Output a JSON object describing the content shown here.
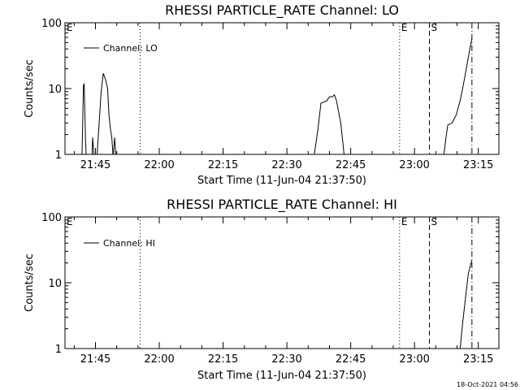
{
  "chart_data": [
    {
      "type": "line",
      "title": "RHESSI PARTICLE_RATE Channel: LO",
      "xlabel": "Start Time (11-Jun-04 21:37:50)",
      "ylabel": "Counts/sec",
      "yscale": "log",
      "ylim": [
        1,
        100
      ],
      "x_range": [
        "21:37:50",
        "23:19:50"
      ],
      "x_ticks": [
        "21:45",
        "22:00",
        "22:15",
        "22:30",
        "22:45",
        "23:00",
        "23:15"
      ],
      "y_ticks": [
        "1",
        "10",
        "100"
      ],
      "legend": {
        "position": "top-left",
        "entries": [
          "Channel: LO"
        ]
      },
      "markers": [
        {
          "label": "E",
          "time": "21:37:50",
          "style": "dotted"
        },
        {
          "label": "",
          "time": "21:55:30",
          "style": "dotted"
        },
        {
          "label": "E",
          "time": "22:56:30",
          "style": "dotted"
        },
        {
          "label": "S",
          "time": "23:03:30",
          "style": "dashed"
        },
        {
          "label": "",
          "time": "23:13:30",
          "style": "dashdot"
        }
      ],
      "series": [
        {
          "name": "Channel: LO",
          "points": [
            [
              "21:41:50",
              0.9
            ],
            [
              "21:42:10",
              11.0
            ],
            [
              "21:42:20",
              12.0
            ],
            [
              "21:42:40",
              1.6
            ],
            [
              "21:42:50",
              0.9
            ],
            [
              "21:44:10",
              0.9
            ],
            [
              "21:44:20",
              1.8
            ],
            [
              "21:44:40",
              0.9
            ],
            [
              "21:45:20",
              0.9
            ],
            [
              "21:46:20",
              9.0
            ],
            [
              "21:46:50",
              17.0
            ],
            [
              "21:47:20",
              14.0
            ],
            [
              "21:47:50",
              10.0
            ],
            [
              "21:48:10",
              4.0
            ],
            [
              "21:48:30",
              2.5
            ],
            [
              "21:48:50",
              1.8
            ],
            [
              "21:49:10",
              0.9
            ],
            [
              "21:49:30",
              1.8
            ],
            [
              "21:49:50",
              0.9
            ],
            [
              "22:36:20",
              0.9
            ],
            [
              "22:37:20",
              2.5
            ],
            [
              "22:38:00",
              6.0
            ],
            [
              "22:39:20",
              6.5
            ],
            [
              "22:40:00",
              7.5
            ],
            [
              "22:40:40",
              7.5
            ],
            [
              "22:41:10",
              8.0
            ],
            [
              "22:41:40",
              6.5
            ],
            [
              "22:42:40",
              3.0
            ],
            [
              "22:43:10",
              1.5
            ],
            [
              "22:43:30",
              0.9
            ],
            [
              "23:06:50",
              0.9
            ],
            [
              "23:07:30",
              2.0
            ],
            [
              "23:07:50",
              2.8
            ],
            [
              "23:08:50",
              3.0
            ],
            [
              "23:09:50",
              4.0
            ],
            [
              "23:10:50",
              7.0
            ],
            [
              "23:11:50",
              15.0
            ],
            [
              "23:12:50",
              35.0
            ],
            [
              "23:13:30",
              58.0
            ]
          ]
        }
      ]
    },
    {
      "type": "line",
      "title": "RHESSI PARTICLE_RATE Channel: HI",
      "xlabel": "Start Time (11-Jun-04 21:37:50)",
      "ylabel": "Counts/sec",
      "yscale": "log",
      "ylim": [
        1,
        100
      ],
      "x_range": [
        "21:37:50",
        "23:19:50"
      ],
      "x_ticks": [
        "21:45",
        "22:00",
        "22:15",
        "22:30",
        "22:45",
        "23:00",
        "23:15"
      ],
      "y_ticks": [
        "1",
        "10",
        "100"
      ],
      "legend": {
        "position": "top-left",
        "entries": [
          "Channel: HI"
        ]
      },
      "markers": [
        {
          "label": "E",
          "time": "21:37:50",
          "style": "dotted"
        },
        {
          "label": "",
          "time": "21:55:30",
          "style": "dotted"
        },
        {
          "label": "E",
          "time": "22:56:30",
          "style": "dotted"
        },
        {
          "label": "S",
          "time": "23:03:30",
          "style": "dashed"
        },
        {
          "label": "",
          "time": "23:13:30",
          "style": "dashdot"
        }
      ],
      "series": [
        {
          "name": "Channel: HI",
          "points": [
            [
              "23:10:40",
              0.9
            ],
            [
              "23:11:20",
              2.5
            ],
            [
              "23:12:00",
              6.0
            ],
            [
              "23:12:40",
              14.0
            ],
            [
              "23:13:30",
              22.0
            ]
          ]
        }
      ]
    }
  ],
  "footer": {
    "timestamp": "18-Oct-2021 04:56"
  }
}
